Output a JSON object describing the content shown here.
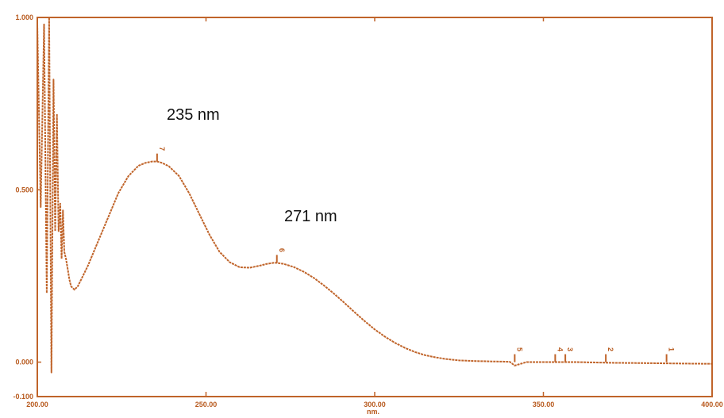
{
  "chart_data": {
    "type": "line",
    "xlabel": "nm.",
    "ylabel": "",
    "xlim": [
      200,
      400
    ],
    "ylim": [
      -0.1,
      1.0
    ],
    "x_ticks": [
      "200.00",
      "250.00",
      "300.00",
      "350.00",
      "400.00"
    ],
    "y_ticks": [
      "1.000",
      "0.500",
      "0.000",
      "-0.100"
    ],
    "grid": false,
    "line_color": "#c0642a",
    "annotations": [
      "235 nm",
      "271 nm"
    ],
    "peaks": [
      {
        "label": "1",
        "x": 386.5,
        "y": 0.0
      },
      {
        "label": "2",
        "x": 368.5,
        "y": 0.0
      },
      {
        "label": "3",
        "x": 356.5,
        "y": 0.0
      },
      {
        "label": "4",
        "x": 353.5,
        "y": 0.0
      },
      {
        "label": "5",
        "x": 341.5,
        "y": 0.0
      },
      {
        "label": "6",
        "x": 271.0,
        "y": 0.288
      },
      {
        "label": "7",
        "x": 235.5,
        "y": 0.582
      }
    ],
    "series": [
      {
        "x": [
          200.0,
          201.0,
          202.0,
          202.8,
          203.5,
          204.2,
          204.8,
          205.3,
          205.8,
          206.3,
          206.8,
          207.2,
          207.6,
          208.0,
          208.5,
          209.0,
          209.5,
          210.0,
          211.0,
          212.0,
          213.0,
          215.0,
          218.0,
          221.0,
          224.0,
          227.0,
          230.0,
          232.0,
          234.0,
          235.5,
          237.0,
          239.0,
          242.0,
          245.0,
          248.0,
          251.0,
          254.0,
          257.0,
          260.0,
          263.0,
          266.0,
          268.0,
          270.0,
          271.0,
          273.0,
          276.0,
          279.0,
          282.0,
          285.0,
          288.0,
          291.0,
          294.0,
          297.0,
          300.0,
          303.0,
          306.0,
          309.0,
          312.0,
          315.0,
          318.0,
          321.0,
          325.0,
          330.0,
          335.0,
          340.0,
          341.5,
          345.0,
          350.0,
          360.0,
          370.0,
          380.0,
          390.0,
          400.0
        ],
        "y": [
          0.98,
          0.45,
          0.98,
          0.2,
          1.0,
          -0.03,
          0.82,
          0.38,
          0.72,
          0.38,
          0.46,
          0.3,
          0.44,
          0.32,
          0.3,
          0.27,
          0.24,
          0.22,
          0.21,
          0.22,
          0.24,
          0.28,
          0.35,
          0.42,
          0.49,
          0.54,
          0.57,
          0.578,
          0.582,
          0.582,
          0.578,
          0.568,
          0.54,
          0.49,
          0.43,
          0.37,
          0.32,
          0.29,
          0.275,
          0.274,
          0.28,
          0.285,
          0.288,
          0.288,
          0.285,
          0.276,
          0.262,
          0.244,
          0.222,
          0.198,
          0.172,
          0.145,
          0.119,
          0.095,
          0.074,
          0.056,
          0.041,
          0.029,
          0.02,
          0.014,
          0.009,
          0.005,
          0.003,
          0.002,
          0.001,
          -0.01,
          0.0,
          0.0,
          0.0,
          -0.002,
          -0.003,
          -0.004,
          -0.005
        ]
      }
    ]
  }
}
